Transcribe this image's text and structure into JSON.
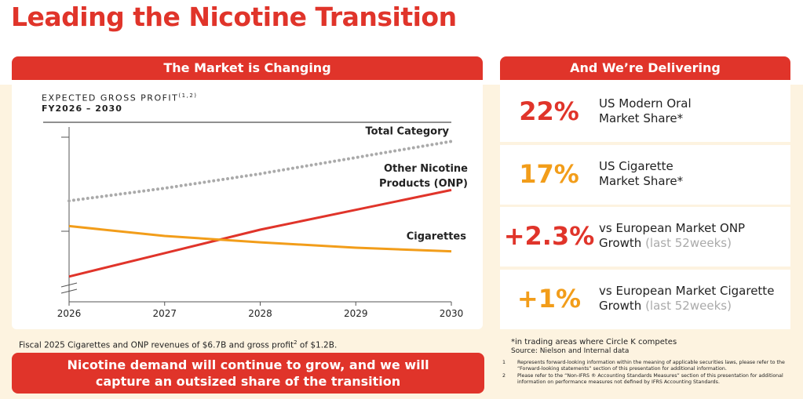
{
  "title": "Leading the Nicotine Transition",
  "left_header": "The Market is Changing",
  "right_header": "And We’re Delivering",
  "chart_data": {
    "type": "line",
    "title": "EXPECTED GROSS PROFIT",
    "title_sup": "(1,2)",
    "subtitle": "FY2026 – 2030",
    "x": [
      2026,
      2027,
      2028,
      2029,
      2030
    ],
    "xlim": [
      2026,
      2030
    ],
    "xticks": [
      2026,
      2027,
      2028,
      2029,
      2030
    ],
    "ylim": [
      0,
      100
    ],
    "series": [
      {
        "name": "Total Category",
        "color": "#aaaaaa",
        "dash": "dotted",
        "values": [
          56,
          63,
          71,
          80,
          89
        ]
      },
      {
        "name": "Other Nicotine Products (ONP)",
        "color": "#e0342a",
        "values": [
          14,
          27,
          40,
          51,
          62
        ]
      },
      {
        "name": "Cigarettes",
        "color": "#f29d1a",
        "values": [
          42,
          36.5,
          33,
          30,
          28
        ]
      }
    ]
  },
  "stats": [
    {
      "value": "22%",
      "color": "#e0342a",
      "lines": [
        "US Modern Oral",
        "Market Share*"
      ]
    },
    {
      "value": "17%",
      "color": "#f29d1a",
      "lines": [
        "US Cigarette",
        "Market Share*"
      ]
    },
    {
      "value": "+2.3%",
      "color": "#e0342a",
      "lines": [
        "vs European Market ONP",
        "Growth"
      ],
      "note": "(last 52weeks)"
    },
    {
      "value": "+1%",
      "color": "#f29d1a",
      "lines": [
        "vs European Market Cigarette",
        "Growth"
      ],
      "note": "(last 52weeks)"
    }
  ],
  "fiscal_note": {
    "before": "Fiscal 2025 Cigarettes and ONP revenues of $6.7B and gross profit",
    "sup": "2",
    "after": " of $1.2B."
  },
  "banner": "Nicotine demand will continue to grow, and we will capture an outsized share of the transition",
  "asterisk_note": "*in trading areas where Circle K competes",
  "source": "Source: Nielson and Internal data",
  "footnotes": [
    {
      "number": "1",
      "text": "Represents forward-looking information within the meaning of applicable securities laws, please refer to the “Forward-looking statements” section of this presentation for additional information."
    },
    {
      "number": "2",
      "text": "Please refer to the “Non-IFRS ® Accounting Standards Measures” section of this presentation for additional information on performance measures not defined by IFRS Accounting Standards."
    }
  ]
}
